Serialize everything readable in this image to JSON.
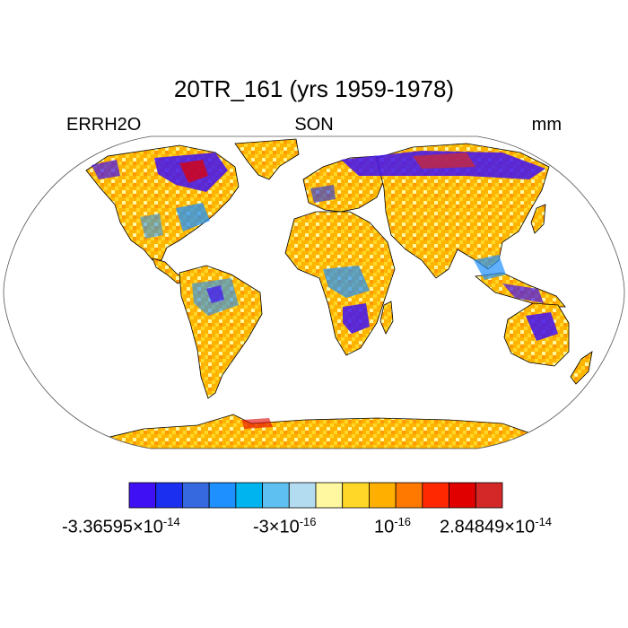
{
  "header": {
    "title": "20TR_161 (yrs 1959-1978)",
    "left_label": "ERRH2O",
    "center_label": "SON",
    "right_label": "mm"
  },
  "colorbar": {
    "colors": [
      "#4010f5",
      "#1a2ff0",
      "#3668e0",
      "#1e90ff",
      "#00b4f0",
      "#5ec0f0",
      "#b4dcf0",
      "#fff8a0",
      "#ffd728",
      "#ffaf00",
      "#ff7800",
      "#ff2800",
      "#e00000",
      "#d42828"
    ],
    "labels": [
      {
        "mantissa": "-3.36595×10",
        "exp": "-14"
      },
      {
        "mantissa": "-3×10",
        "exp": "-16"
      },
      {
        "mantissa": "10",
        "exp": "-16"
      },
      {
        "mantissa": "2.84849×10",
        "exp": "-14"
      }
    ]
  },
  "map": {
    "projection": "Robinson",
    "field_dominant_color": "#ffb400"
  }
}
